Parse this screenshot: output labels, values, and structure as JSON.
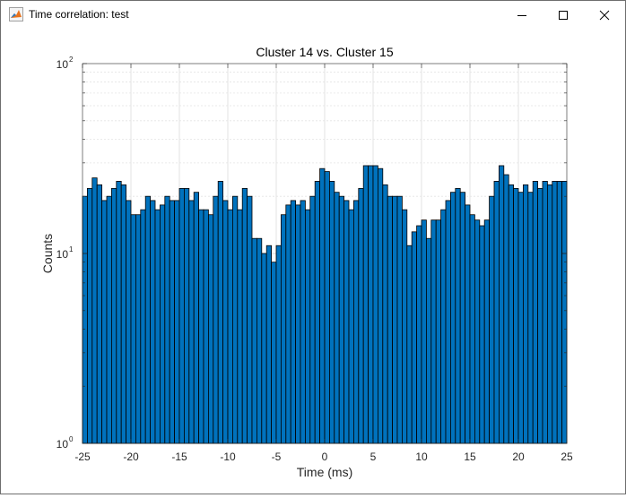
{
  "window": {
    "title": "Time correlation: test",
    "controls": {
      "minimize": "minimize-icon",
      "maximize": "maximize-icon",
      "close": "close-icon"
    }
  },
  "chart_data": {
    "type": "bar",
    "title": "Cluster 14 vs. Cluster 15",
    "xlabel": "Time (ms)",
    "ylabel": "Counts",
    "xlim": [
      -25,
      25
    ],
    "ylim": [
      1,
      100
    ],
    "yscale": "log",
    "grid": true,
    "bin_width": 0.5,
    "bar_color": "#0072BD",
    "edge_color": "#000000",
    "x_ticks": [
      "-25",
      "-20",
      "-15",
      "-10",
      "-5",
      "0",
      "5",
      "10",
      "15",
      "20",
      "25"
    ],
    "y_ticks": [
      {
        "base": "10",
        "exp": "0"
      },
      {
        "base": "10",
        "exp": "1"
      },
      {
        "base": "10",
        "exp": "2"
      }
    ],
    "x": [
      -24.75,
      -24.25,
      -23.75,
      -23.25,
      -22.75,
      -22.25,
      -21.75,
      -21.25,
      -20.75,
      -20.25,
      -19.75,
      -19.25,
      -18.75,
      -18.25,
      -17.75,
      -17.25,
      -16.75,
      -16.25,
      -15.75,
      -15.25,
      -14.75,
      -14.25,
      -13.75,
      -13.25,
      -12.75,
      -12.25,
      -11.75,
      -11.25,
      -10.75,
      -10.25,
      -9.75,
      -9.25,
      -8.75,
      -8.25,
      -7.75,
      -7.25,
      -6.75,
      -6.25,
      -5.75,
      -5.25,
      -4.75,
      -4.25,
      -3.75,
      -3.25,
      -2.75,
      -2.25,
      -1.75,
      -1.25,
      -0.75,
      -0.25,
      0.25,
      0.75,
      1.25,
      1.75,
      2.25,
      2.75,
      3.25,
      3.75,
      4.25,
      4.75,
      5.25,
      5.75,
      6.25,
      6.75,
      7.25,
      7.75,
      8.25,
      8.75,
      9.25,
      9.75,
      10.25,
      10.75,
      11.25,
      11.75,
      12.25,
      12.75,
      13.25,
      13.75,
      14.25,
      14.75,
      15.25,
      15.75,
      16.25,
      16.75,
      17.25,
      17.75,
      18.25,
      18.75,
      19.25,
      19.75,
      20.25,
      20.75,
      21.25,
      21.75,
      22.25,
      22.75,
      23.25,
      23.75,
      24.25,
      24.75
    ],
    "values": [
      20,
      22,
      25,
      23,
      19,
      20,
      22,
      24,
      23,
      19,
      16,
      16,
      17,
      20,
      19,
      17,
      18,
      20,
      19,
      19,
      22,
      22,
      19,
      21,
      17,
      17,
      16,
      20,
      24,
      19,
      17,
      20,
      17,
      22,
      20,
      12,
      12,
      10,
      11,
      9,
      11,
      16,
      18,
      19,
      18,
      19,
      17,
      20,
      24,
      28,
      27,
      24,
      21,
      20,
      19,
      17,
      19,
      22,
      29,
      29,
      29,
      28,
      23,
      20,
      20,
      20,
      17,
      11,
      13,
      14,
      15,
      12,
      15,
      15,
      17,
      19,
      21,
      22,
      21,
      18,
      16,
      15,
      14,
      15,
      20,
      24,
      29,
      26,
      23,
      22,
      21,
      23,
      21,
      24,
      22,
      24,
      23,
      24,
      24,
      24
    ]
  }
}
